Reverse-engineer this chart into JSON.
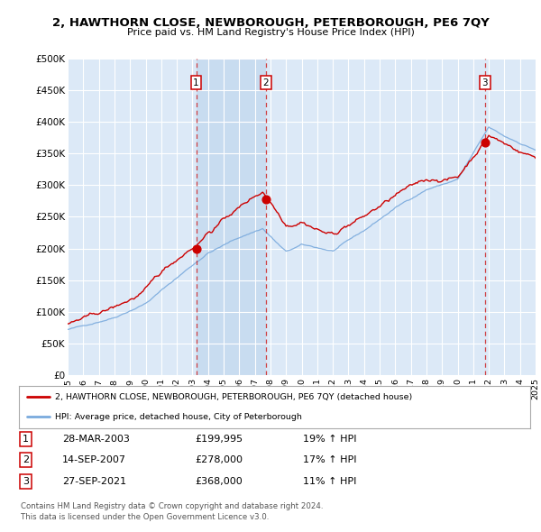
{
  "title": "2, HAWTHORN CLOSE, NEWBOROUGH, PETERBOROUGH, PE6 7QY",
  "subtitle": "Price paid vs. HM Land Registry's House Price Index (HPI)",
  "ylim": [
    0,
    500000
  ],
  "yticks": [
    0,
    50000,
    100000,
    150000,
    200000,
    250000,
    300000,
    350000,
    400000,
    450000,
    500000
  ],
  "ytick_labels": [
    "£0",
    "£50K",
    "£100K",
    "£150K",
    "£200K",
    "£250K",
    "£300K",
    "£350K",
    "£400K",
    "£450K",
    "£500K"
  ],
  "background_color": "#ffffff",
  "plot_bg_color": "#dce9f7",
  "shade_color": "#c8dcf0",
  "grid_color": "#ffffff",
  "sale_color": "#cc0000",
  "hpi_color": "#7aaadd",
  "transaction_prices": [
    199995,
    278000,
    368000
  ],
  "transaction_years": [
    2003.24,
    2007.71,
    2021.75
  ],
  "transaction_labels": [
    "1",
    "2",
    "3"
  ],
  "legend_sale_label": "2, HAWTHORN CLOSE, NEWBOROUGH, PETERBOROUGH, PE6 7QY (detached house)",
  "legend_hpi_label": "HPI: Average price, detached house, City of Peterborough",
  "table_rows": [
    [
      "1",
      "28-MAR-2003",
      "£199,995",
      "19% ↑ HPI"
    ],
    [
      "2",
      "14-SEP-2007",
      "£278,000",
      "17% ↑ HPI"
    ],
    [
      "3",
      "27-SEP-2021",
      "£368,000",
      "11% ↑ HPI"
    ]
  ],
  "footer": "Contains HM Land Registry data © Crown copyright and database right 2024.\nThis data is licensed under the Open Government Licence v3.0.",
  "x_start_year": 1995,
  "x_end_year": 2025
}
